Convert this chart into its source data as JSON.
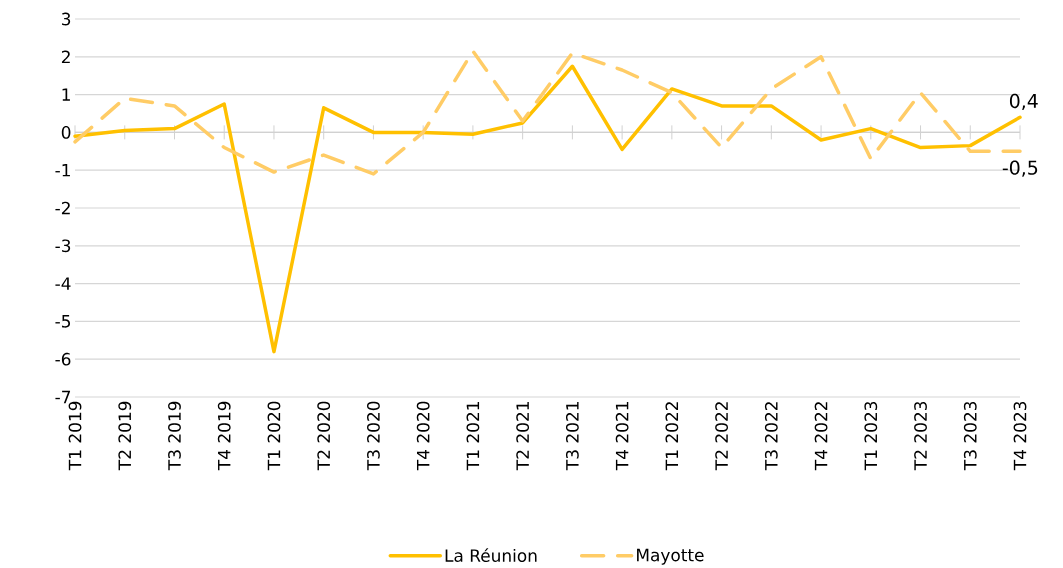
{
  "chart_data": {
    "type": "line",
    "categories": [
      "T1 2019",
      "T2 2019",
      "T3 2019",
      "T4 2019",
      "T1 2020",
      "T2 2020",
      "T3 2020",
      "T4 2020",
      "T1 2021",
      "T2 2021",
      "T3 2021",
      "T4 2021",
      "T1 2022",
      "T2 2022",
      "T3 2022",
      "T4 2022",
      "T1 2023",
      "T2 2023",
      "T3 2023",
      "T4 2023"
    ],
    "series": [
      {
        "name": "La Réunion",
        "color": "#ffc000",
        "line_style": "solid",
        "values": [
          -0.1,
          0.05,
          0.1,
          0.75,
          -5.8,
          0.65,
          0.0,
          0.0,
          -0.05,
          0.25,
          1.75,
          -0.45,
          1.15,
          0.7,
          0.7,
          -0.2,
          0.1,
          -0.4,
          -0.35,
          0.4
        ],
        "value_labels": [
          null,
          null,
          null,
          null,
          null,
          null,
          null,
          null,
          null,
          null,
          null,
          null,
          null,
          null,
          null,
          null,
          null,
          null,
          null,
          "0,4"
        ]
      },
      {
        "name": "Mayotte",
        "color": "#ffcc66",
        "line_style": "dashed",
        "values": [
          -0.25,
          0.9,
          0.7,
          -0.4,
          -1.05,
          -0.6,
          -1.1,
          0.0,
          2.15,
          0.3,
          2.1,
          1.65,
          1.05,
          -0.4,
          1.15,
          2.0,
          -0.7,
          1.05,
          -0.5,
          -0.5
        ],
        "value_labels": [
          null,
          null,
          null,
          null,
          null,
          null,
          null,
          null,
          null,
          null,
          null,
          null,
          null,
          null,
          null,
          null,
          null,
          null,
          null,
          "-0,5"
        ]
      }
    ],
    "ylim": [
      -7,
      3
    ],
    "yticks": [
      -7,
      -6,
      -5,
      -4,
      -3,
      -2,
      -1,
      0,
      1,
      2,
      3
    ],
    "grid": "y",
    "legend": "bottom",
    "marker": "none"
  }
}
